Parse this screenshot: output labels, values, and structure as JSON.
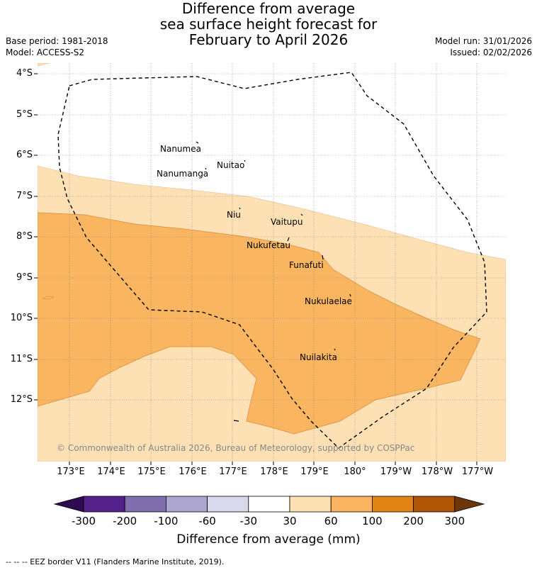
{
  "title": {
    "line1": "Difference from average",
    "line2": "sea surface height forecast for",
    "line3": "February to April 2026"
  },
  "meta": {
    "base_period": "Base period: 1981-2018",
    "model": "Model: ACCESS-S2",
    "model_run": "Model run: 31/01/2026",
    "issued": "Issued: 02/02/2026"
  },
  "axes": {
    "lat_labels": [
      "4°S",
      "5°S",
      "6°S",
      "7°S",
      "8°S",
      "9°S",
      "10°S",
      "11°S",
      "12°S"
    ],
    "lon_labels": [
      "173°E",
      "174°E",
      "175°E",
      "176°E",
      "177°E",
      "178°E",
      "179°E",
      "180°",
      "179°W",
      "178°W",
      "177°W"
    ]
  },
  "islands": [
    {
      "name": "Nanumea"
    },
    {
      "name": "Nuitao"
    },
    {
      "name": "Nanumanga"
    },
    {
      "name": "Niu"
    },
    {
      "name": "Vaitupu"
    },
    {
      "name": "Nukufetau"
    },
    {
      "name": "Funafuti"
    },
    {
      "name": "Nukulaelae"
    },
    {
      "name": "Nuilakita"
    }
  ],
  "copyright": "© Commonwealth of Australia 2026, Bureau of Meteorology, supported by COSPPac",
  "colorbar": {
    "labels": [
      "-300",
      "-200",
      "-100",
      "-60",
      "-30",
      "30",
      "60",
      "100",
      "200",
      "300"
    ],
    "colors": [
      "#2d0a52",
      "#54218a",
      "#7f6fad",
      "#ada7cf",
      "#d9d9ec",
      "#ffffff",
      "#fde0b4",
      "#fab35e",
      "#e28316",
      "#b05406",
      "#6e340a"
    ],
    "title": "Difference from average (mm)"
  },
  "footer": "--  --  -- EEZ border V11 (Flanders Marine Institute, 2019)."
}
